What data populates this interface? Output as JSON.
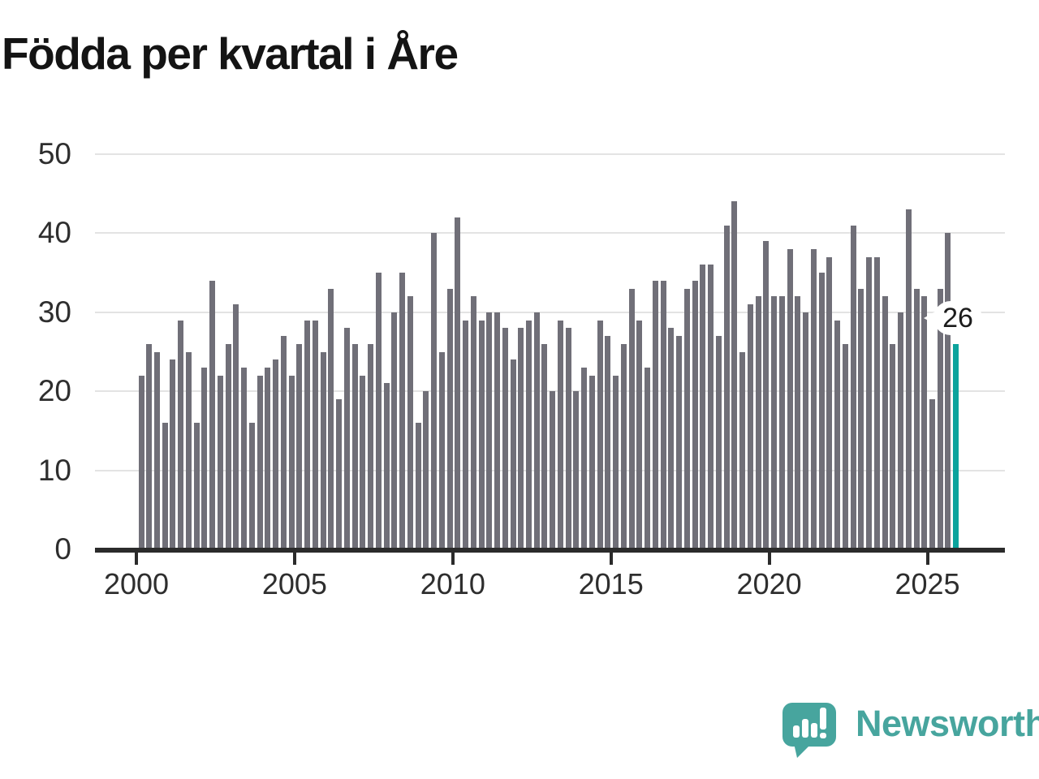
{
  "title": "Födda per kvartal i Åre",
  "annotation": {
    "label": "26"
  },
  "branding": {
    "wordmark": "Newsworthy"
  },
  "colors": {
    "bar": "#706f78",
    "highlight": "#0ca39d",
    "logo_teal": "#47a59e",
    "axis": "#2b2b2b",
    "grid": "#e3e3e3",
    "title_text": "#141414",
    "tick_text": "#2e2e2e"
  },
  "chart_data": {
    "type": "bar",
    "title": "Födda per kvartal i Åre",
    "xlabel": "",
    "ylabel": "",
    "ylim": [
      0,
      50
    ],
    "yticks": [
      0,
      10,
      20,
      30,
      40,
      50
    ],
    "xticks": [
      2000,
      2005,
      2010,
      2015,
      2020,
      2025
    ],
    "grid": true,
    "period": "quarterly",
    "first_quarter": "2000Q1",
    "last_quarter": "2025Q4",
    "highlight_last_bar": true,
    "highlight_value": 26,
    "series_by_year": [
      {
        "year": 2000,
        "values": [
          22,
          26,
          25,
          16
        ]
      },
      {
        "year": 2001,
        "values": [
          24,
          29,
          25,
          16
        ]
      },
      {
        "year": 2002,
        "values": [
          23,
          34,
          22,
          26
        ]
      },
      {
        "year": 2003,
        "values": [
          31,
          23,
          16,
          22
        ]
      },
      {
        "year": 2004,
        "values": [
          23,
          24,
          27,
          22
        ]
      },
      {
        "year": 2005,
        "values": [
          26,
          29,
          29,
          25
        ]
      },
      {
        "year": 2006,
        "values": [
          33,
          19,
          28,
          26
        ]
      },
      {
        "year": 2007,
        "values": [
          22,
          26,
          35,
          21
        ]
      },
      {
        "year": 2008,
        "values": [
          30,
          35,
          32,
          16
        ]
      },
      {
        "year": 2009,
        "values": [
          20,
          40,
          25,
          33
        ]
      },
      {
        "year": 2010,
        "values": [
          42,
          29,
          32,
          29
        ]
      },
      {
        "year": 2011,
        "values": [
          30,
          30,
          28,
          24
        ]
      },
      {
        "year": 2012,
        "values": [
          28,
          29,
          30,
          26
        ]
      },
      {
        "year": 2013,
        "values": [
          20,
          29,
          28,
          20
        ]
      },
      {
        "year": 2014,
        "values": [
          23,
          22,
          29,
          27
        ]
      },
      {
        "year": 2015,
        "values": [
          22,
          26,
          33,
          29
        ]
      },
      {
        "year": 2016,
        "values": [
          23,
          34,
          34,
          28
        ]
      },
      {
        "year": 2017,
        "values": [
          27,
          33,
          34,
          36
        ]
      },
      {
        "year": 2018,
        "values": [
          36,
          27,
          41,
          44
        ]
      },
      {
        "year": 2019,
        "values": [
          25,
          31,
          32,
          39
        ]
      },
      {
        "year": 2020,
        "values": [
          32,
          32,
          38,
          32
        ]
      },
      {
        "year": 2021,
        "values": [
          30,
          38,
          35,
          37
        ]
      },
      {
        "year": 2022,
        "values": [
          29,
          26,
          41,
          33
        ]
      },
      {
        "year": 2023,
        "values": [
          37,
          37,
          32,
          26
        ]
      },
      {
        "year": 2024,
        "values": [
          30,
          43,
          33,
          32
        ]
      },
      {
        "year": 2025,
        "values": [
          19,
          33,
          40,
          26
        ]
      }
    ]
  }
}
